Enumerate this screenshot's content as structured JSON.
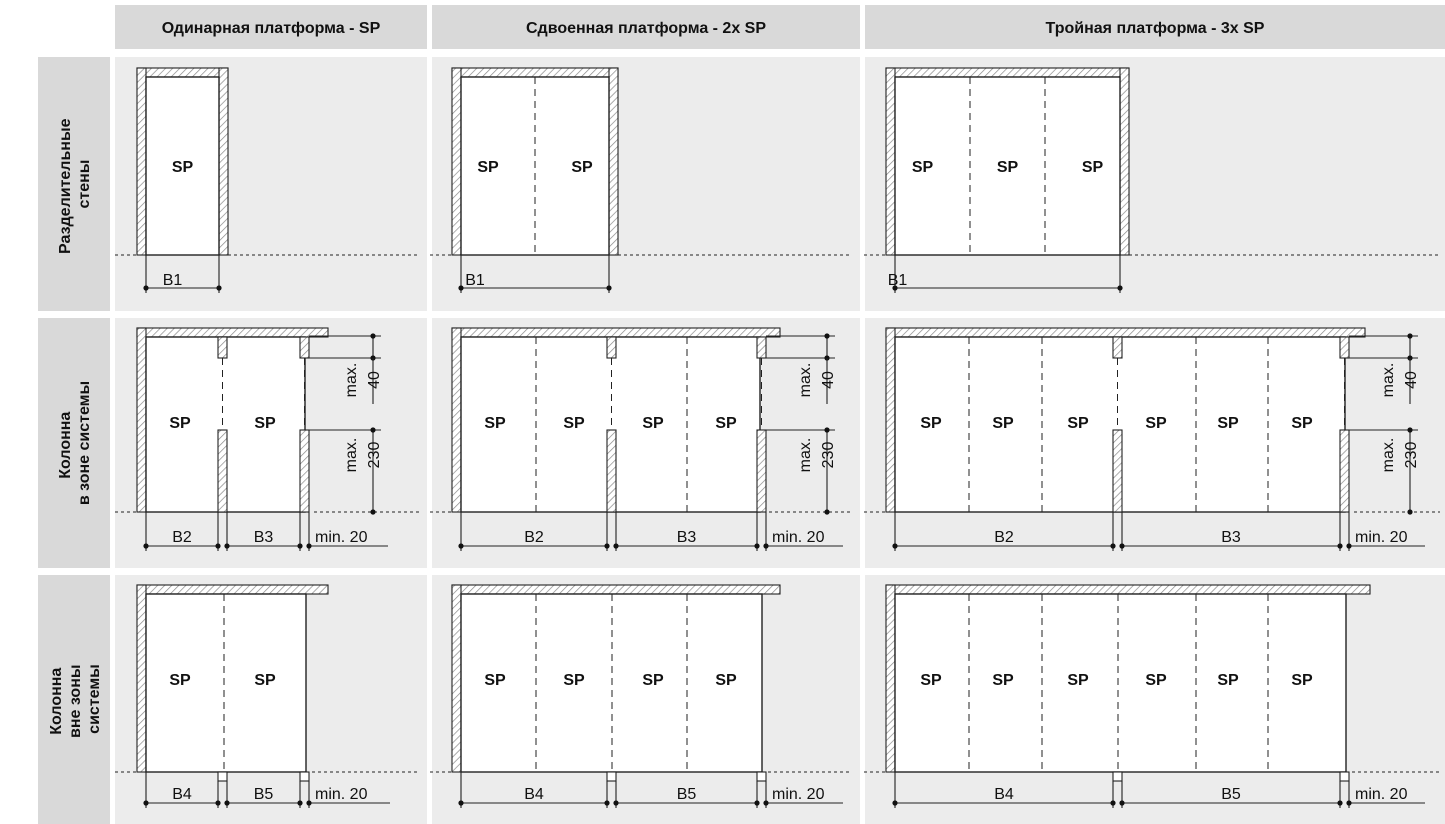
{
  "colors": {
    "panel": "#ececec",
    "header": "#d9d9d9",
    "ink": "#222222",
    "hatch": "#8a8a8a"
  },
  "headers": [
    "Одинарная платформа - SP",
    "Сдвоенная платформа - 2x SP",
    "Тройная платформа - 3x SP"
  ],
  "rows": [
    {
      "label_lines": [
        "Разделительные",
        "стены"
      ]
    },
    {
      "label_lines": [
        "Колонна",
        "в зоне системы"
      ]
    },
    {
      "label_lines": [
        "Колонна",
        "вне зоны",
        "системы"
      ]
    }
  ],
  "sp_label": "SP",
  "dims": {
    "b1": "B1",
    "b2": "B2",
    "b3": "B3",
    "b4": "B4",
    "b5": "B5",
    "min20": "min. 20",
    "max_label": "max.",
    "max40": "40",
    "max230": "230"
  }
}
